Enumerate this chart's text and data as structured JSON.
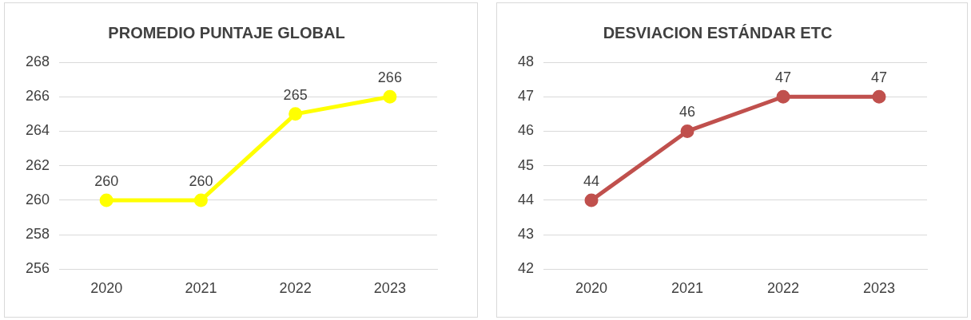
{
  "chart_data": [
    {
      "type": "line",
      "title": "PROMEDIO PUNTAJE GLOBAL",
      "categories": [
        "2020",
        "2021",
        "2022",
        "2023"
      ],
      "values": [
        260,
        260,
        265,
        266
      ],
      "color": "#ffff00",
      "ylim": [
        256,
        268
      ],
      "yticks": [
        256,
        258,
        260,
        262,
        264,
        266,
        268
      ],
      "grid": "y",
      "data_labels": true,
      "marker": "circle"
    },
    {
      "type": "line",
      "title": "DESVIACION ESTÁNDAR ETC",
      "categories": [
        "2020",
        "2021",
        "2022",
        "2023"
      ],
      "values": [
        44,
        46,
        47,
        47
      ],
      "color": "#c0504d",
      "ylim": [
        42,
        48
      ],
      "yticks": [
        42,
        43,
        44,
        45,
        46,
        47,
        48
      ],
      "grid": "y",
      "data_labels": true,
      "marker": "circle"
    }
  ]
}
